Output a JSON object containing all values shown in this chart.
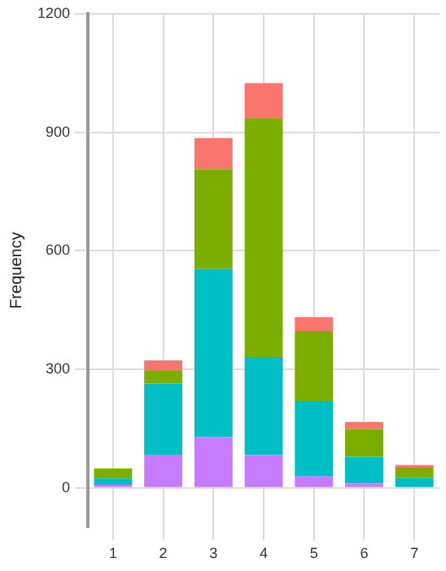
{
  "chart_data": {
    "type": "bar",
    "stacked": true,
    "ylabel": "Frequency",
    "categories": [
      "1",
      "2",
      "3",
      "4",
      "5",
      "6",
      "7"
    ],
    "series": [
      {
        "color": "#c77cff",
        "values": [
          8,
          84,
          129,
          83,
          29,
          11,
          null
        ]
      },
      {
        "color": "#00bfc4",
        "values": [
          16,
          180,
          425,
          248,
          191,
          68,
          25
        ]
      },
      {
        "color": "#7cae00",
        "values": [
          25,
          32,
          252,
          603,
          177,
          70,
          26
        ]
      },
      {
        "color": "#f8766d",
        "values": [
          null,
          27,
          79,
          90,
          35,
          18,
          7
        ]
      }
    ],
    "ylim": [
      -100,
      1200
    ],
    "yticks": [
      0,
      300,
      600,
      900,
      1200
    ],
    "grid": true,
    "legend": false
  }
}
